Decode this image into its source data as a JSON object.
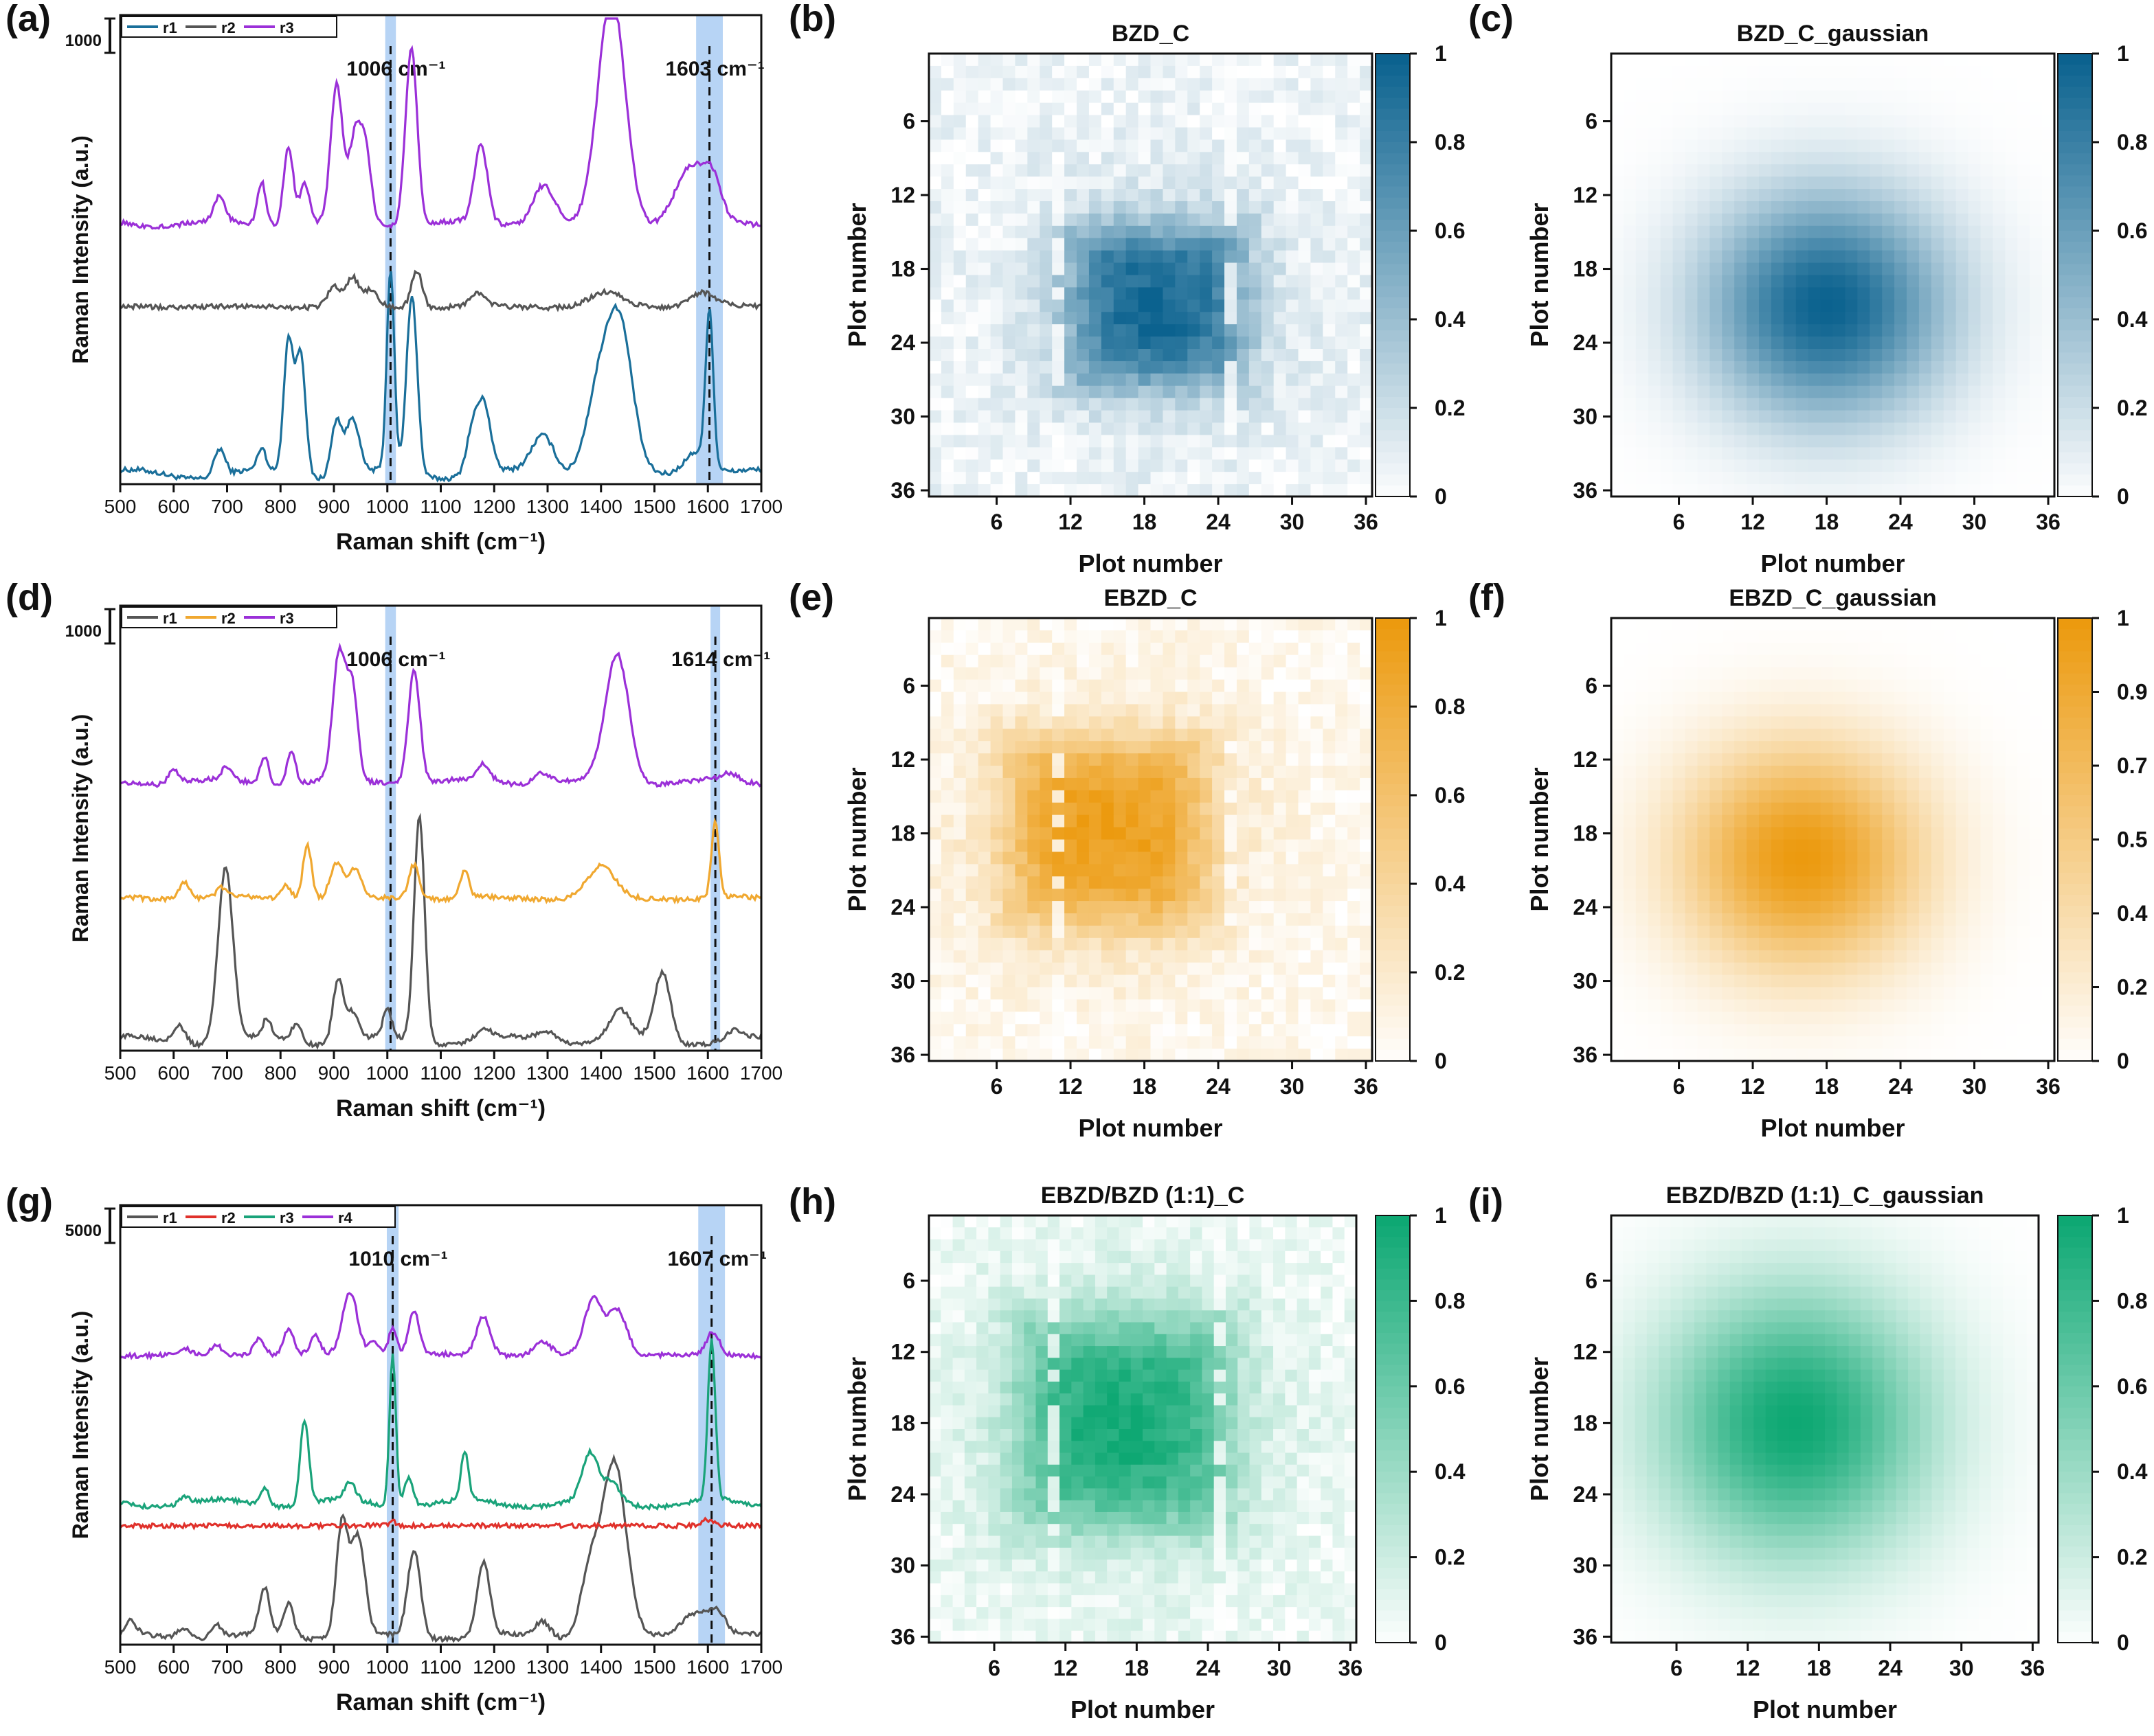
{
  "figure": {
    "raman_xlabel": "Raman shift (cm⁻¹)",
    "raman_ylabel": "Raman Intensity (a.u.)",
    "map_xlabel": "Plot number",
    "map_ylabel": "Plot number"
  },
  "chart_data": [
    {
      "panel": "(a)",
      "type": "line",
      "xlabel": "Raman shift (cm⁻¹)",
      "ylabel": "Raman Intensity (a.u.)",
      "xlim": [
        500,
        1700
      ],
      "xticks": [
        "500",
        "600",
        "700",
        "800",
        "900",
        "1000",
        "1100",
        "1200",
        "1300",
        "1400",
        "1500",
        "1600",
        "1700"
      ],
      "scale_bar": "1000",
      "legend_position": "top-left",
      "series": [
        {
          "name": "r1",
          "color": "#1a6f9a",
          "offset": 0.0,
          "scale": 0.55,
          "peaks": [
            [
              686,
              0.12,
              10
            ],
            [
              765,
              0.1,
              8
            ],
            [
              815,
              0.6,
              9
            ],
            [
              838,
              0.55,
              9
            ],
            [
              905,
              0.25,
              10
            ],
            [
              935,
              0.25,
              12
            ],
            [
              1006,
              0.9,
              7
            ],
            [
              1046,
              0.8,
              10
            ],
            [
              1160,
              0.2,
              12
            ],
            [
              1182,
              0.28,
              12
            ],
            [
              1292,
              0.18,
              22
            ],
            [
              1405,
              0.48,
              28
            ],
            [
              1440,
              0.45,
              22
            ],
            [
              1580,
              0.12,
              25
            ],
            [
              1603,
              0.68,
              7
            ]
          ]
        },
        {
          "name": "r2",
          "color": "#555555",
          "offset": 0.42,
          "scale": 0.1,
          "peaks": [
            [
              900,
              0.5,
              12
            ],
            [
              935,
              0.7,
              12
            ],
            [
              970,
              0.4,
              12
            ],
            [
              1055,
              0.9,
              10
            ],
            [
              1170,
              0.3,
              15
            ],
            [
              1410,
              0.35,
              30
            ],
            [
              1590,
              0.35,
              25
            ]
          ]
        },
        {
          "name": "r3",
          "color": "#9b30d8",
          "offset": 0.62,
          "scale": 0.35,
          "peaks": [
            [
              686,
              0.18,
              10
            ],
            [
              765,
              0.3,
              8
            ],
            [
              815,
              0.55,
              9
            ],
            [
              845,
              0.28,
              9
            ],
            [
              905,
              0.95,
              11
            ],
            [
              940,
              0.6,
              12
            ],
            [
              960,
              0.45,
              10
            ],
            [
              1045,
              1.25,
              11
            ],
            [
              1175,
              0.55,
              12
            ],
            [
              1292,
              0.28,
              20
            ],
            [
              1420,
              1.6,
              25
            ],
            [
              1570,
              0.4,
              30
            ],
            [
              1610,
              0.2,
              15
            ]
          ]
        }
      ],
      "highlights": [
        {
          "x": 1006,
          "label": "1006 cm⁻¹",
          "width": 20
        },
        {
          "x": 1603,
          "label": "1603 cm⁻¹",
          "width": 50
        }
      ]
    },
    {
      "panel": "(d)",
      "type": "line",
      "xlabel": "Raman shift (cm⁻¹)",
      "ylabel": "Raman Intensity (a.u.)",
      "xlim": [
        500,
        1700
      ],
      "xticks": [
        "500",
        "600",
        "700",
        "800",
        "900",
        "1000",
        "1100",
        "1200",
        "1300",
        "1400",
        "1500",
        "1600",
        "1700"
      ],
      "scale_bar": "1000",
      "legend_position": "top-left",
      "series": [
        {
          "name": "r1",
          "color": "#555555",
          "offset": 0.0,
          "scale": 0.6,
          "peaks": [
            [
              610,
              0.08,
              12
            ],
            [
              697,
              0.75,
              14
            ],
            [
              775,
              0.08,
              8
            ],
            [
              830,
              0.08,
              10
            ],
            [
              908,
              0.28,
              10
            ],
            [
              935,
              0.12,
              10
            ],
            [
              1000,
              0.12,
              8
            ],
            [
              1060,
              0.98,
              10
            ],
            [
              1180,
              0.04,
              15
            ],
            [
              1300,
              0.05,
              20
            ],
            [
              1435,
              0.12,
              18
            ],
            [
              1515,
              0.3,
              15
            ],
            [
              1650,
              0.04,
              12
            ]
          ]
        },
        {
          "name": "r2",
          "color": "#f0a830",
          "offset": 0.38,
          "scale": 0.18,
          "peaks": [
            [
              620,
              0.25,
              10
            ],
            [
              690,
              0.15,
              10
            ],
            [
              810,
              0.2,
              10
            ],
            [
              850,
              0.8,
              8
            ],
            [
              905,
              0.5,
              12
            ],
            [
              940,
              0.4,
              12
            ],
            [
              1050,
              0.5,
              10
            ],
            [
              1145,
              0.4,
              8
            ],
            [
              1400,
              0.45,
              25
            ],
            [
              1614,
              1.1,
              7
            ]
          ]
        },
        {
          "name": "r3",
          "color": "#9b30d8",
          "offset": 0.68,
          "scale": 0.35,
          "peaks": [
            [
              600,
              0.1,
              10
            ],
            [
              700,
              0.1,
              10
            ],
            [
              770,
              0.2,
              8
            ],
            [
              820,
              0.25,
              8
            ],
            [
              910,
              0.95,
              12
            ],
            [
              935,
              0.65,
              10
            ],
            [
              1050,
              0.85,
              11
            ],
            [
              1180,
              0.12,
              12
            ],
            [
              1290,
              0.08,
              15
            ],
            [
              1430,
              0.95,
              22
            ],
            [
              1640,
              0.05,
              15
            ]
          ]
        }
      ],
      "highlights": [
        {
          "x": 1006,
          "label": "1006 cm⁻¹",
          "width": 20
        },
        {
          "x": 1614,
          "label": "1614 cm⁻¹",
          "width": 18
        }
      ]
    },
    {
      "panel": "(g)",
      "type": "line",
      "xlabel": "Raman shift (cm⁻¹)",
      "ylabel": "Raman Intensity (a.u.)",
      "xlim": [
        500,
        1700
      ],
      "xticks": [
        "500",
        "600",
        "700",
        "800",
        "900",
        "1000",
        "1100",
        "1200",
        "1300",
        "1400",
        "1500",
        "1600",
        "1700"
      ],
      "scale_bar": "5000",
      "legend_position": "top-left",
      "series": [
        {
          "name": "r1",
          "color": "#555555",
          "offset": 0.0,
          "scale": 0.35,
          "peaks": [
            [
              520,
              0.1,
              10
            ],
            [
              620,
              0.08,
              12
            ],
            [
              680,
              0.1,
              10
            ],
            [
              770,
              0.35,
              10
            ],
            [
              815,
              0.25,
              10
            ],
            [
              915,
              0.85,
              11
            ],
            [
              945,
              0.75,
              13
            ],
            [
              1050,
              0.65,
              12
            ],
            [
              1180,
              0.55,
              12
            ],
            [
              1290,
              0.12,
              15
            ],
            [
              1380,
              0.5,
              18
            ],
            [
              1425,
              1.3,
              22
            ],
            [
              1580,
              0.2,
              30
            ],
            [
              1620,
              0.12,
              15
            ]
          ]
        },
        {
          "name": "r2",
          "color": "#e0312b",
          "offset": 0.3,
          "scale": 0.02,
          "peaks": [
            [
              1010,
              0.5,
              8
            ],
            [
              1600,
              0.8,
              10
            ]
          ]
        },
        {
          "name": "r3",
          "color": "#1aa37a",
          "offset": 0.35,
          "scale": 0.5,
          "peaks": [
            [
              620,
              0.04,
              8
            ],
            [
              770,
              0.1,
              8
            ],
            [
              845,
              0.45,
              8
            ],
            [
              930,
              0.1,
              10
            ],
            [
              1010,
              0.8,
              6
            ],
            [
              1040,
              0.15,
              8
            ],
            [
              1145,
              0.25,
              7
            ],
            [
              1380,
              0.25,
              15
            ],
            [
              1420,
              0.1,
              15
            ],
            [
              1607,
              0.85,
              7
            ]
          ]
        },
        {
          "name": "r4",
          "color": "#9b30d8",
          "offset": 0.75,
          "scale": 0.12,
          "peaks": [
            [
              620,
              0.15,
              10
            ],
            [
              680,
              0.2,
              10
            ],
            [
              760,
              0.4,
              10
            ],
            [
              815,
              0.55,
              10
            ],
            [
              865,
              0.4,
              9
            ],
            [
              930,
              1.4,
              14
            ],
            [
              975,
              0.3,
              10
            ],
            [
              1010,
              0.6,
              8
            ],
            [
              1050,
              1.0,
              10
            ],
            [
              1180,
              0.85,
              13
            ],
            [
              1290,
              0.3,
              15
            ],
            [
              1385,
              1.2,
              16
            ],
            [
              1430,
              1.0,
              18
            ],
            [
              1610,
              0.5,
              12
            ]
          ]
        }
      ],
      "highlights": [
        {
          "x": 1010,
          "label": "1010 cm⁻¹",
          "width": 22
        },
        {
          "x": 1607,
          "label": "1607 cm⁻¹",
          "width": 50
        }
      ]
    },
    {
      "panel": "(b)",
      "type": "heatmap",
      "title": "BZD_C",
      "colormap": "blue",
      "color": "#0b628f",
      "xlabel": "Plot number",
      "ylabel": "Plot number",
      "xticks": [
        "6",
        "12",
        "18",
        "24",
        "30",
        "36"
      ],
      "yticks": [
        "6",
        "12",
        "18",
        "24",
        "30",
        "36"
      ],
      "colorbar": [
        "0",
        "0.2",
        "0.4",
        "0.6",
        "0.8",
        "1"
      ],
      "grid_size": 36,
      "center": [
        19,
        21
      ],
      "spread": [
        6.5,
        6.0
      ]
    },
    {
      "panel": "(c)",
      "type": "heatmap",
      "title": "BZD_C_gaussian",
      "colormap": "blue",
      "color": "#0b628f",
      "xlabel": "Plot number",
      "ylabel": "Plot number",
      "xticks": [
        "6",
        "12",
        "18",
        "24",
        "30",
        "36"
      ],
      "yticks": [
        "6",
        "12",
        "18",
        "24",
        "30",
        "36"
      ],
      "colorbar": [
        "0",
        "0.2",
        "0.4",
        "0.6",
        "0.8",
        "1"
      ],
      "grid_size": 36,
      "center": [
        18,
        21
      ],
      "spread": [
        7.0,
        6.5
      ]
    },
    {
      "panel": "(e)",
      "type": "heatmap",
      "title": "EBZD_C",
      "colormap": "orange",
      "color": "#ec9a0f",
      "xlabel": "Plot number",
      "ylabel": "Plot number",
      "xticks": [
        "6",
        "12",
        "18",
        "24",
        "30",
        "36"
      ],
      "yticks": [
        "6",
        "12",
        "18",
        "24",
        "30",
        "36"
      ],
      "colorbar": [
        "0",
        "0.2",
        "0.4",
        "0.6",
        "0.8",
        "1"
      ],
      "grid_size": 36,
      "center": [
        15,
        18
      ],
      "spread": [
        7.5,
        7.0
      ]
    },
    {
      "panel": "(f)",
      "type": "heatmap",
      "title": "EBZD_C_gaussian",
      "colormap": "orange",
      "color": "#ec9a0f",
      "xlabel": "Plot number",
      "ylabel": "Plot number",
      "xticks": [
        "6",
        "12",
        "18",
        "24",
        "30",
        "36"
      ],
      "yticks": [
        "6",
        "12",
        "18",
        "24",
        "30",
        "36"
      ],
      "colorbar": [
        "0",
        "0.2",
        "0.4",
        "0.5",
        "0.7",
        "0.9",
        "1"
      ],
      "grid_size": 36,
      "center": [
        16,
        20
      ],
      "spread": [
        7.0,
        6.5
      ]
    },
    {
      "panel": "(h)",
      "type": "heatmap",
      "title": "EBZD/BZD (1:1)_C",
      "colormap": "green",
      "color": "#0ea873",
      "xlabel": "Plot number",
      "ylabel": "Plot number",
      "xticks": [
        "6",
        "12",
        "18",
        "24",
        "30",
        "36"
      ],
      "yticks": [
        "6",
        "12",
        "18",
        "24",
        "30",
        "36"
      ],
      "colorbar": [
        "0",
        "0.2",
        "0.4",
        "0.6",
        "0.8",
        "1"
      ],
      "grid_size": 36,
      "center": [
        17,
        18
      ],
      "spread": [
        8.0,
        8.0
      ]
    },
    {
      "panel": "(i)",
      "type": "heatmap",
      "title": "EBZD/BZD (1:1)_C_gaussian",
      "colormap": "green",
      "color": "#0ea873",
      "xlabel": "Plot number",
      "ylabel": "Plot number",
      "xticks": [
        "6",
        "12",
        "18",
        "24",
        "30",
        "36"
      ],
      "yticks": [
        "6",
        "12",
        "18",
        "24",
        "30",
        "36"
      ],
      "colorbar": [
        "0",
        "0.2",
        "0.4",
        "0.6",
        "0.8",
        "1"
      ],
      "grid_size": 36,
      "center": [
        16,
        18
      ],
      "spread": [
        8.0,
        8.0
      ]
    }
  ]
}
